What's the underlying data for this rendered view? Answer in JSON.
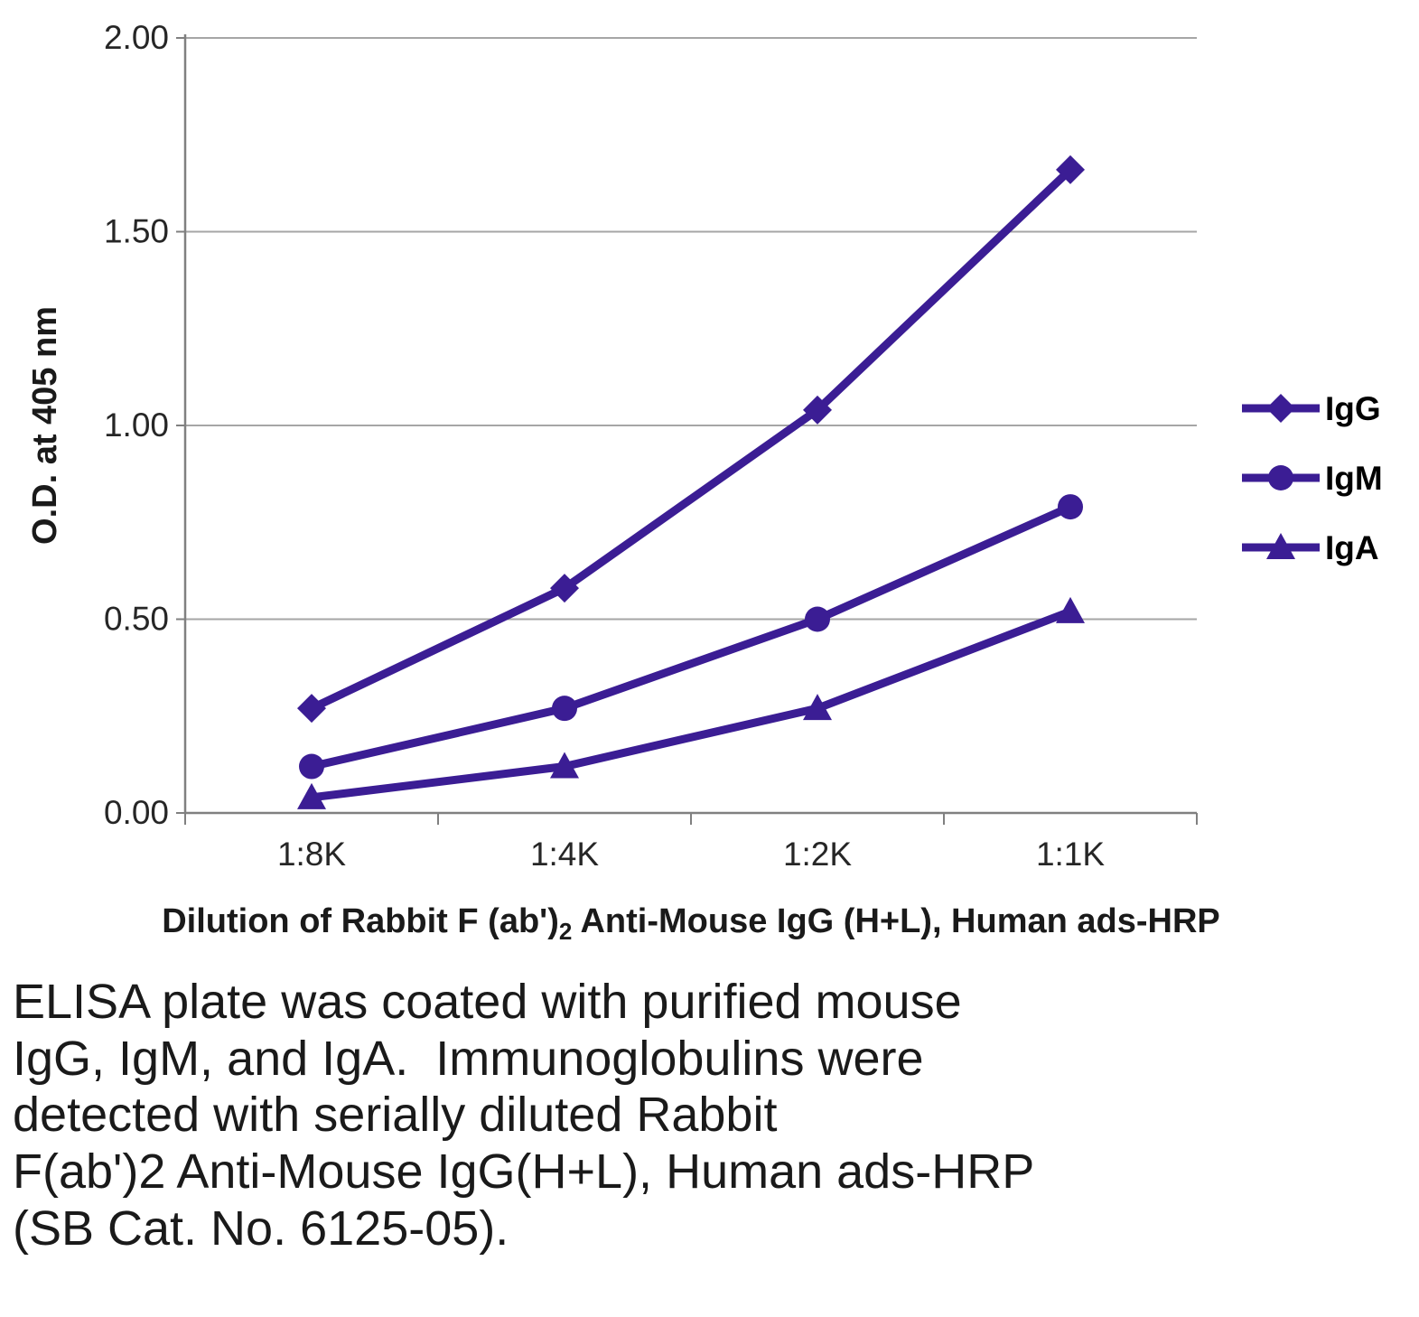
{
  "chart_data": {
    "type": "line",
    "title": "",
    "categories": [
      "1:8K",
      "1:4K",
      "1:2K",
      "1:1K"
    ],
    "series": [
      {
        "name": "IgG",
        "marker": "diamond",
        "values": [
          0.27,
          0.58,
          1.04,
          1.66
        ]
      },
      {
        "name": "IgM",
        "marker": "circle",
        "values": [
          0.12,
          0.27,
          0.5,
          0.79
        ]
      },
      {
        "name": "IgA",
        "marker": "triangle",
        "values": [
          0.04,
          0.12,
          0.27,
          0.52
        ]
      }
    ],
    "ylabel": "O.D. at 405 nm",
    "xlabel_pre": "Dilution of Rabbit F (ab')",
    "xlabel_sub": "2",
    "xlabel_post": " Anti-Mouse IgG (H+L), Human ads-HRP",
    "ylim": [
      0,
      2
    ],
    "yticks": [
      0,
      0.5,
      1.0,
      1.5,
      2.0
    ],
    "grid": true,
    "legend_position": "right",
    "series_color": "#3B1D94",
    "grid_color": "#A6A6A6",
    "axis_color": "#808080",
    "text_color": "#262626"
  },
  "caption_lines": [
    "ELISA plate was coated with purified mouse",
    "IgG, IgM, and IgA.  Immunoglobulins were",
    "detected with serially diluted Rabbit",
    "F(ab')2 Anti-Mouse IgG(H+L), Human ads-HRP",
    "(SB Cat. No. 6125-05)."
  ]
}
